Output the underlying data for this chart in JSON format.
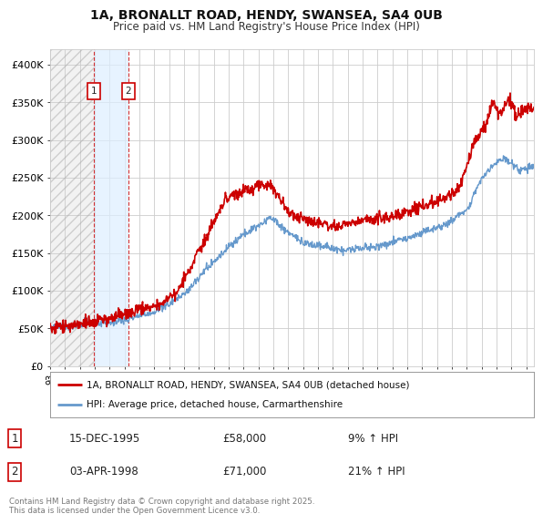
{
  "title_line1": "1A, BRONALLT ROAD, HENDY, SWANSEA, SA4 0UB",
  "title_line2": "Price paid vs. HM Land Registry's House Price Index (HPI)",
  "ylim": [
    0,
    420000
  ],
  "yticks": [
    0,
    50000,
    100000,
    150000,
    200000,
    250000,
    300000,
    350000,
    400000
  ],
  "ytick_labels": [
    "£0",
    "£50K",
    "£100K",
    "£150K",
    "£200K",
    "£250K",
    "£300K",
    "£350K",
    "£400K"
  ],
  "grid_color": "#cccccc",
  "sale1_x": 1995.96,
  "sale1_y": 58000,
  "sale2_x": 1998.25,
  "sale2_y": 71000,
  "sale1_label": "1",
  "sale2_label": "2",
  "legend_line1": "1A, BRONALLT ROAD, HENDY, SWANSEA, SA4 0UB (detached house)",
  "legend_line2": "HPI: Average price, detached house, Carmarthenshire",
  "table_entries": [
    [
      "1",
      "15-DEC-1995",
      "£58,000",
      "9% ↑ HPI"
    ],
    [
      "2",
      "03-APR-1998",
      "£71,000",
      "21% ↑ HPI"
    ]
  ],
  "footer": "Contains HM Land Registry data © Crown copyright and database right 2025.\nThis data is licensed under the Open Government Licence v3.0.",
  "price_color": "#cc0000",
  "hpi_color": "#6699cc",
  "background_color": "#ffffff",
  "hatch_end_x": 1995.96,
  "shade_start_x": 1995.96,
  "shade_end_x": 1998.25,
  "xlim_start": 1993.0,
  "xlim_end": 2025.5
}
